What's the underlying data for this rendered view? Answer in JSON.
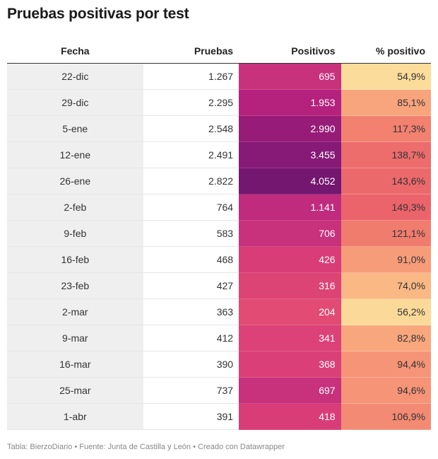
{
  "title": "Pruebas positivas por test",
  "footer": "Tabla: BierzoDiario • Fuente: Junta de Castilla y León • Creado con Datawrapper",
  "chart_data": {
    "type": "table",
    "columns": [
      "Fecha",
      "Pruebas",
      "Positivos",
      "% positivo"
    ],
    "rows": [
      {
        "fecha": "22-dic",
        "pruebas": "1.267",
        "positivos": "695",
        "pct": "54,9%",
        "pos_color": "#c8317c",
        "pct_color": "#fbdc9a"
      },
      {
        "fecha": "29-dic",
        "pruebas": "2.295",
        "positivos": "1.953",
        "pct": "85,1%",
        "pos_color": "#b5227d",
        "pct_color": "#f8a47c"
      },
      {
        "fecha": "5-ene",
        "pruebas": "2.548",
        "positivos": "2.990",
        "pct": "117,3%",
        "pos_color": "#961c78",
        "pct_color": "#f2816f"
      },
      {
        "fecha": "12-ene",
        "pruebas": "2.491",
        "positivos": "3.455",
        "pct": "138,7%",
        "pos_color": "#861a76",
        "pct_color": "#ed6c6c"
      },
      {
        "fecha": "26-ene",
        "pruebas": "2.822",
        "positivos": "4.052",
        "pct": "143,6%",
        "pos_color": "#741770",
        "pct_color": "#ec696b"
      },
      {
        "fecha": "2-feb",
        "pruebas": "764",
        "positivos": "1.141",
        "pct": "149,3%",
        "pos_color": "#c12b7d",
        "pct_color": "#eb646b"
      },
      {
        "fecha": "9-feb",
        "pruebas": "583",
        "positivos": "706",
        "pct": "121,1%",
        "pos_color": "#c8317c",
        "pct_color": "#f07c6e"
      },
      {
        "fecha": "16-feb",
        "pruebas": "468",
        "positivos": "426",
        "pct": "91,0%",
        "pos_color": "#d83d78",
        "pct_color": "#f79c79"
      },
      {
        "fecha": "23-feb",
        "pruebas": "427",
        "positivos": "316",
        "pct": "74,0%",
        "pos_color": "#dd4476",
        "pct_color": "#f9b884"
      },
      {
        "fecha": "2-mar",
        "pruebas": "363",
        "positivos": "204",
        "pct": "56,2%",
        "pos_color": "#e24b73",
        "pct_color": "#fbd999"
      },
      {
        "fecha": "9-mar",
        "pruebas": "412",
        "positivos": "341",
        "pct": "82,8%",
        "pos_color": "#dc4277",
        "pct_color": "#f8a77d"
      },
      {
        "fecha": "16-mar",
        "pruebas": "390",
        "positivos": "368",
        "pct": "94,4%",
        "pos_color": "#da4077",
        "pct_color": "#f69477"
      },
      {
        "fecha": "25-mar",
        "pruebas": "737",
        "positivos": "697",
        "pct": "94,6%",
        "pos_color": "#c8317c",
        "pct_color": "#f69477"
      },
      {
        "fecha": "1-abr",
        "pruebas": "391",
        "positivos": "418",
        "pct": "106,9%",
        "pos_color": "#d83d78",
        "pct_color": "#f38a73"
      }
    ]
  }
}
